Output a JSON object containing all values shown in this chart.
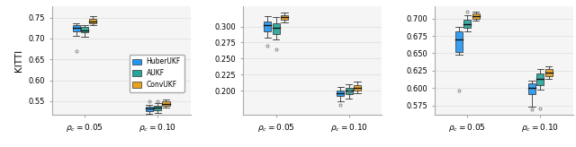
{
  "ylabel": "KITTI",
  "xtick_labels": [
    [
      "$\\rho_c = 0.05$",
      "$\\rho_c = 0.10$"
    ],
    [
      "$\\rho_c = 0.05$",
      "$\\rho_c = 0.10$"
    ],
    [
      "$\\rho_c = 0.05$",
      "$\\rho_c = 0.10$"
    ]
  ],
  "colors": [
    "#2196F3",
    "#26A69A",
    "#E8A020"
  ],
  "legend_labels": [
    "HuberUKF",
    "AUKF",
    "ConvUKF"
  ],
  "subplots": [
    {
      "ylim": [
        0.518,
        0.778
      ],
      "yticks": [
        0.55,
        0.6,
        0.65,
        0.7,
        0.75
      ],
      "groups": [
        {
          "boxes": [
            {
              "q1": 0.718,
              "median": 0.725,
              "q3": 0.732,
              "whislo": 0.707,
              "whishi": 0.737,
              "fliers": [
                0.67
              ]
            },
            {
              "q1": 0.714,
              "median": 0.72,
              "q3": 0.727,
              "whislo": 0.705,
              "whishi": 0.732,
              "fliers": []
            },
            {
              "q1": 0.736,
              "median": 0.741,
              "q3": 0.746,
              "whislo": 0.732,
              "whishi": 0.753,
              "fliers": []
            }
          ]
        },
        {
          "boxes": [
            {
              "q1": 0.527,
              "median": 0.532,
              "q3": 0.537,
              "whislo": 0.521,
              "whishi": 0.542,
              "fliers": [
                0.549
              ]
            },
            {
              "q1": 0.529,
              "median": 0.534,
              "q3": 0.539,
              "whislo": 0.522,
              "whishi": 0.545,
              "fliers": [
                0.55
              ]
            },
            {
              "q1": 0.539,
              "median": 0.543,
              "q3": 0.549,
              "whislo": 0.535,
              "whishi": 0.554,
              "fliers": []
            }
          ]
        }
      ]
    },
    {
      "ylim": [
        0.163,
        0.332
      ],
      "yticks": [
        0.2,
        0.225,
        0.25,
        0.275,
        0.3
      ],
      "groups": [
        {
          "boxes": [
            {
              "q1": 0.292,
              "median": 0.302,
              "q3": 0.308,
              "whislo": 0.282,
              "whishi": 0.316,
              "fliers": [
                0.27
              ]
            },
            {
              "q1": 0.288,
              "median": 0.298,
              "q3": 0.305,
              "whislo": 0.28,
              "whishi": 0.314,
              "fliers": [
                0.265
              ]
            },
            {
              "q1": 0.31,
              "median": 0.314,
              "q3": 0.318,
              "whislo": 0.307,
              "whishi": 0.322,
              "fliers": []
            }
          ]
        },
        {
          "boxes": [
            {
              "q1": 0.192,
              "median": 0.197,
              "q3": 0.201,
              "whislo": 0.184,
              "whishi": 0.206,
              "fliers": [
                0.178
              ]
            },
            {
              "q1": 0.195,
              "median": 0.2,
              "q3": 0.205,
              "whislo": 0.188,
              "whishi": 0.21,
              "fliers": [
                0.199
              ]
            },
            {
              "q1": 0.2,
              "median": 0.204,
              "q3": 0.209,
              "whislo": 0.196,
              "whishi": 0.214,
              "fliers": []
            }
          ]
        }
      ]
    },
    {
      "ylim": [
        0.562,
        0.718
      ],
      "yticks": [
        0.575,
        0.6,
        0.625,
        0.65,
        0.675,
        0.7
      ],
      "groups": [
        {
          "boxes": [
            {
              "q1": 0.652,
              "median": 0.67,
              "q3": 0.681,
              "whislo": 0.648,
              "whishi": 0.688,
              "fliers": [
                0.596
              ]
            },
            {
              "q1": 0.686,
              "median": 0.692,
              "q3": 0.698,
              "whislo": 0.682,
              "whishi": 0.704,
              "fliers": [
                0.71
              ]
            },
            {
              "q1": 0.7,
              "median": 0.703,
              "q3": 0.707,
              "whislo": 0.697,
              "whishi": 0.71,
              "fliers": []
            }
          ]
        },
        {
          "boxes": [
            {
              "q1": 0.592,
              "median": 0.6,
              "q3": 0.607,
              "whislo": 0.574,
              "whishi": 0.611,
              "fliers": [
                0.569
              ]
            },
            {
              "q1": 0.604,
              "median": 0.613,
              "q3": 0.621,
              "whislo": 0.598,
              "whishi": 0.627,
              "fliers": [
                0.571
              ]
            },
            {
              "q1": 0.617,
              "median": 0.622,
              "q3": 0.627,
              "whislo": 0.613,
              "whishi": 0.631,
              "fliers": []
            }
          ]
        }
      ]
    }
  ],
  "box_width": 0.1,
  "group_positions": [
    0.0,
    1.0
  ],
  "offsets": [
    -0.115,
    0.0,
    0.115
  ]
}
